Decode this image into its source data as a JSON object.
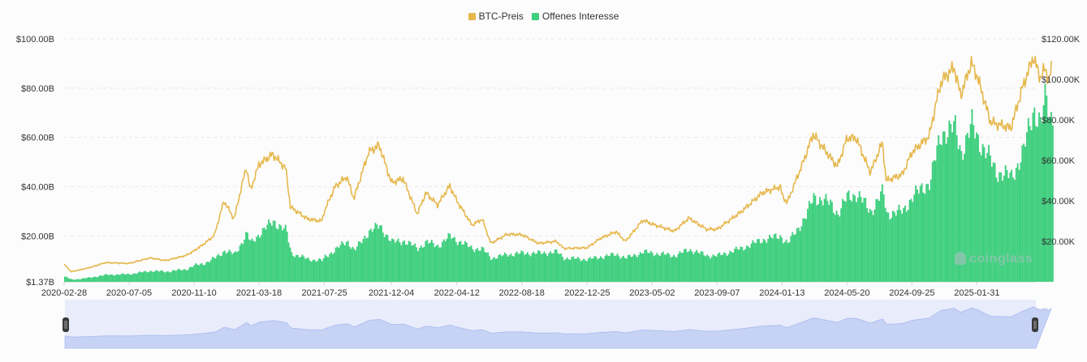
{
  "legend": {
    "price_label": "BTC-Preis",
    "oi_label": "Offenes Interesse"
  },
  "colors": {
    "price": "#e6b84d",
    "oi": "#3fcf7e",
    "navigator_fill": "#c7d3f5",
    "navigator_bg": "#e9edfb",
    "grid": "#e8e8e8"
  },
  "watermark": "coinglass",
  "chart_data": {
    "type": "line",
    "x_ticks": [
      "2020-02-28",
      "2020-07-05",
      "2020-11-10",
      "2021-03-18",
      "2021-07-25",
      "2021-12-04",
      "2022-04-12",
      "2022-08-18",
      "2022-12-25",
      "2023-05-02",
      "2023-09-07",
      "2024-01-13",
      "2024-05-20",
      "2024-09-25",
      "2025-01-31"
    ],
    "y_left_ticks": [
      "$1.37B",
      "$20.00B",
      "$40.00B",
      "$60.00B",
      "$80.00B",
      "$100.00B"
    ],
    "y_right_ticks": [
      "$20.00K",
      "$40.00K",
      "$60.00K",
      "$80.00K",
      "$100.00K",
      "$120.00K"
    ],
    "y_left_range": [
      1.37,
      100
    ],
    "y_right_range": [
      0,
      120000
    ],
    "series": [
      {
        "name": "BTC-Preis",
        "axis": "right",
        "kind": "line",
        "points": [
          [
            "2020-02-28",
            8600
          ],
          [
            "2020-03-13",
            5000
          ],
          [
            "2020-04-15",
            6800
          ],
          [
            "2020-05-20",
            9500
          ],
          [
            "2020-07-05",
            9100
          ],
          [
            "2020-08-15",
            11800
          ],
          [
            "2020-09-15",
            10500
          ],
          [
            "2020-10-25",
            13000
          ],
          [
            "2020-11-10",
            15300
          ],
          [
            "2020-12-01",
            19000
          ],
          [
            "2020-12-20",
            23000
          ],
          [
            "2021-01-08",
            40000
          ],
          [
            "2021-01-28",
            31000
          ],
          [
            "2021-02-21",
            57000
          ],
          [
            "2021-03-01",
            45000
          ],
          [
            "2021-03-18",
            58000
          ],
          [
            "2021-04-14",
            63000
          ],
          [
            "2021-05-10",
            56000
          ],
          [
            "2021-05-19",
            37000
          ],
          [
            "2021-06-22",
            31000
          ],
          [
            "2021-07-20",
            30000
          ],
          [
            "2021-07-25",
            35000
          ],
          [
            "2021-08-15",
            47000
          ],
          [
            "2021-09-07",
            52000
          ],
          [
            "2021-09-21",
            41000
          ],
          [
            "2021-10-20",
            64000
          ],
          [
            "2021-11-10",
            67500
          ],
          [
            "2021-12-04",
            49000
          ],
          [
            "2021-12-27",
            51000
          ],
          [
            "2022-01-24",
            33500
          ],
          [
            "2022-02-10",
            44000
          ],
          [
            "2022-03-05",
            38000
          ],
          [
            "2022-03-29",
            47500
          ],
          [
            "2022-04-12",
            40000
          ],
          [
            "2022-05-12",
            28000
          ],
          [
            "2022-06-01",
            31000
          ],
          [
            "2022-06-18",
            19000
          ],
          [
            "2022-07-20",
            23500
          ],
          [
            "2022-08-18",
            23300
          ],
          [
            "2022-09-20",
            19000
          ],
          [
            "2022-10-25",
            20000
          ],
          [
            "2022-11-09",
            16500
          ],
          [
            "2022-12-25",
            16800
          ],
          [
            "2023-01-20",
            21500
          ],
          [
            "2023-02-20",
            24800
          ],
          [
            "2023-03-10",
            20000
          ],
          [
            "2023-04-14",
            30500
          ],
          [
            "2023-05-02",
            28500
          ],
          [
            "2023-06-15",
            25000
          ],
          [
            "2023-07-13",
            31500
          ],
          [
            "2023-08-17",
            26000
          ],
          [
            "2023-09-07",
            26000
          ],
          [
            "2023-10-24",
            34500
          ],
          [
            "2023-12-05",
            44000
          ],
          [
            "2024-01-10",
            47000
          ],
          [
            "2024-01-13",
            42800
          ],
          [
            "2024-01-23",
            39000
          ],
          [
            "2024-02-28",
            62000
          ],
          [
            "2024-03-14",
            73000
          ],
          [
            "2024-04-17",
            61500
          ],
          [
            "2024-05-01",
            57000
          ],
          [
            "2024-05-20",
            71000
          ],
          [
            "2024-06-07",
            71000
          ],
          [
            "2024-07-05",
            54000
          ],
          [
            "2024-07-29",
            69000
          ],
          [
            "2024-08-05",
            50000
          ],
          [
            "2024-09-06",
            53000
          ],
          [
            "2024-09-25",
            64000
          ],
          [
            "2024-10-29",
            72000
          ],
          [
            "2024-11-13",
            90000
          ],
          [
            "2024-11-22",
            99000
          ],
          [
            "2024-12-17",
            106000
          ],
          [
            "2024-12-30",
            92000
          ],
          [
            "2025-01-20",
            108000
          ],
          [
            "2025-01-31",
            102000
          ],
          [
            "2025-02-27",
            79000
          ],
          [
            "2025-03-10",
            78000
          ],
          [
            "2025-04-08",
            76000
          ],
          [
            "2025-05-01",
            96000
          ],
          [
            "2025-05-22",
            111000
          ],
          [
            "2025-06-05",
            101000
          ],
          [
            "2025-06-15",
            105500
          ],
          [
            "2025-06-22",
            99000
          ],
          [
            "2025-06-28",
            107000
          ]
        ]
      },
      {
        "name": "Offenes Interesse",
        "axis": "left",
        "kind": "bar",
        "points": [
          [
            "2020-02-28",
            3.5
          ],
          [
            "2020-03-13",
            2.2
          ],
          [
            "2020-04-15",
            3.0
          ],
          [
            "2020-05-20",
            4.2
          ],
          [
            "2020-07-05",
            4.5
          ],
          [
            "2020-08-15",
            5.8
          ],
          [
            "2020-09-15",
            5.5
          ],
          [
            "2020-10-25",
            6.5
          ],
          [
            "2020-11-10",
            8.0
          ],
          [
            "2020-12-01",
            9.0
          ],
          [
            "2020-12-20",
            11.0
          ],
          [
            "2021-01-08",
            14.0
          ],
          [
            "2021-01-28",
            12.5
          ],
          [
            "2021-02-21",
            21.0
          ],
          [
            "2021-03-01",
            17.0
          ],
          [
            "2021-03-18",
            21.0
          ],
          [
            "2021-04-14",
            26.0
          ],
          [
            "2021-05-10",
            22.0
          ],
          [
            "2021-05-19",
            13.0
          ],
          [
            "2021-06-22",
            10.5
          ],
          [
            "2021-07-20",
            10.0
          ],
          [
            "2021-07-25",
            11.5
          ],
          [
            "2021-08-15",
            14.5
          ],
          [
            "2021-09-07",
            18.0
          ],
          [
            "2021-09-21",
            14.0
          ],
          [
            "2021-10-20",
            22.0
          ],
          [
            "2021-11-10",
            24.0
          ],
          [
            "2021-12-04",
            17.5
          ],
          [
            "2021-12-27",
            18.0
          ],
          [
            "2022-01-24",
            15.0
          ],
          [
            "2022-02-10",
            17.5
          ],
          [
            "2022-03-05",
            16.0
          ],
          [
            "2022-03-29",
            20.0
          ],
          [
            "2022-04-12",
            18.0
          ],
          [
            "2022-05-12",
            15.0
          ],
          [
            "2022-06-01",
            14.5
          ],
          [
            "2022-06-18",
            11.0
          ],
          [
            "2022-07-20",
            12.5
          ],
          [
            "2022-08-18",
            13.0
          ],
          [
            "2022-09-20",
            13.0
          ],
          [
            "2022-10-25",
            13.5
          ],
          [
            "2022-11-09",
            11.0
          ],
          [
            "2022-12-25",
            10.5
          ],
          [
            "2023-01-20",
            11.5
          ],
          [
            "2023-02-20",
            12.5
          ],
          [
            "2023-03-10",
            11.0
          ],
          [
            "2023-04-14",
            13.5
          ],
          [
            "2023-05-02",
            13.0
          ],
          [
            "2023-06-15",
            12.0
          ],
          [
            "2023-07-13",
            14.5
          ],
          [
            "2023-08-17",
            12.0
          ],
          [
            "2023-09-07",
            12.0
          ],
          [
            "2023-10-24",
            15.0
          ],
          [
            "2023-12-05",
            18.5
          ],
          [
            "2024-01-10",
            20.0
          ],
          [
            "2024-01-13",
            19.0
          ],
          [
            "2024-01-23",
            17.0
          ],
          [
            "2024-02-28",
            28.0
          ],
          [
            "2024-03-14",
            36.0
          ],
          [
            "2024-04-17",
            33.0
          ],
          [
            "2024-05-01",
            29.0
          ],
          [
            "2024-05-20",
            36.0
          ],
          [
            "2024-06-07",
            37.0
          ],
          [
            "2024-07-05",
            30.0
          ],
          [
            "2024-07-29",
            38.0
          ],
          [
            "2024-08-05",
            29.0
          ],
          [
            "2024-09-06",
            30.0
          ],
          [
            "2024-09-25",
            36.0
          ],
          [
            "2024-10-29",
            42.0
          ],
          [
            "2024-11-13",
            55.0
          ],
          [
            "2024-11-22",
            62.0
          ],
          [
            "2024-12-17",
            64.0
          ],
          [
            "2024-12-30",
            54.0
          ],
          [
            "2025-01-20",
            65.0
          ],
          [
            "2025-01-31",
            60.0
          ],
          [
            "2025-02-27",
            50.0
          ],
          [
            "2025-03-10",
            46.0
          ],
          [
            "2025-04-08",
            44.0
          ],
          [
            "2025-05-01",
            54.0
          ],
          [
            "2025-05-22",
            72.0
          ],
          [
            "2025-06-05",
            65.0
          ],
          [
            "2025-06-15",
            77.0
          ],
          [
            "2025-06-22",
            68.0
          ],
          [
            "2025-06-28",
            70.0
          ]
        ]
      }
    ],
    "grid": true,
    "legend_position": "top-center"
  }
}
